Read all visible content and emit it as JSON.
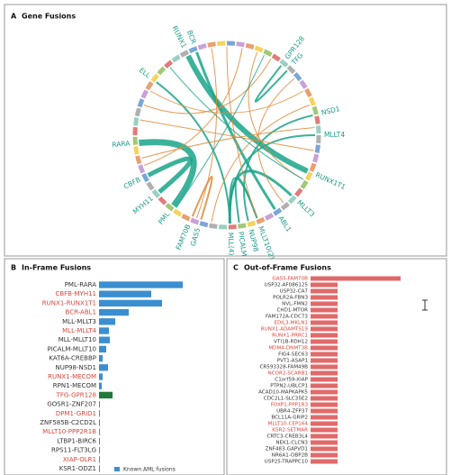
{
  "chart_data": [
    {
      "type": "chord",
      "panel": "A",
      "title": "Gene Fusions",
      "labels": [
        "RUNX1",
        "BCR",
        "GPR128",
        "TFG",
        "NSD1",
        "MLLT4",
        "RUNX1T1",
        "MLLT3",
        "ABL1",
        "MLLT10(2)",
        "NUP98",
        "PICALM",
        "MLL(4)",
        "GAS5",
        "FAM70B",
        "PML",
        "MYH11",
        "CBFB",
        "RARA",
        "ELL"
      ]
    },
    {
      "type": "hbar",
      "panel": "B",
      "title": "In-Frame Fusions",
      "categories": [
        "PML-RARA",
        "CBFB-MYH11",
        "RUNX1-RUNX1T1",
        "BCR-ABL1",
        "MLL-MLLT3",
        "MLL-MLLT4",
        "MLL-MLLT10",
        "PICALM-MLLT10",
        "KAT6A-CREBBP",
        "NUP98-NSD1",
        "RUNX1-MECOM",
        "RPN1-MECOM",
        "TFG-GPR128",
        "GOSR1-ZNF207",
        "DPM1-GRID1",
        "ZNF585B-C2CD2L",
        "MLLT10-PPP2R1B",
        "LTBP1-BIRC6",
        "RPS11-FLT3LG",
        "XIAP-OLR1",
        "KSR1-ODZ1"
      ],
      "values": [
        93,
        58,
        70,
        33,
        18,
        11,
        12,
        8,
        4,
        10,
        4,
        3,
        15,
        1,
        1,
        1,
        1,
        1,
        1,
        1,
        1
      ],
      "colors": [
        "#3b8fd0",
        "#3b8fd0",
        "#3b8fd0",
        "#3b8fd0",
        "#3b8fd0",
        "#3b8fd0",
        "#3b8fd0",
        "#3b8fd0",
        "#3b8fd0",
        "#3b8fd0",
        "#3b8fd0",
        "#3b8fd0",
        "#1f7a3a",
        "#3b8fd0",
        "#3b8fd0",
        "#3b8fd0",
        "#3b8fd0",
        "#3b8fd0",
        "#3b8fd0",
        "#3b8fd0",
        "#3b8fd0"
      ],
      "label_colors": [
        "#333333",
        "#d9453a",
        "#d9453a",
        "#d9453a",
        "#333333",
        "#d9453a",
        "#333333",
        "#333333",
        "#333333",
        "#333333",
        "#d9453a",
        "#333333",
        "#d9453a",
        "#333333",
        "#d9453a",
        "#333333",
        "#d9453a",
        "#333333",
        "#333333",
        "#d9453a",
        "#333333"
      ],
      "xlim": [
        0,
        100
      ],
      "legend": [
        {
          "name": "Known AML fusions",
          "color": "#3b8fd0"
        }
      ]
    },
    {
      "type": "hbar",
      "panel": "C",
      "title": "Out-of-Frame Fusions",
      "categories": [
        "GAS5-FAM70B",
        "USP32-AF086125",
        "USP32-CA7",
        "POLR2A-FBN3",
        "NVL-FMN2",
        "CHD1-MTOR",
        "FAM172A-CDC73",
        "EDIL3-MKLN1",
        "RUNX1-ADAMTS19",
        "RUNX1-PRRC1",
        "VTI1B-RDH12",
        "MDM4-DNMT3B",
        "FIG4-SEC63",
        "PVT1-ASAP1",
        "CR593328-FAM49B",
        "NCOR2-SCARB1",
        "C1orf59-XIAP",
        "PTPN2-UBLCP1",
        "ACAD10-MAPKAPK5",
        "CDC2L1-SLC35E2",
        "FOXP1-PPP1R3",
        "UBR4-ZFP37",
        "BCL11A-GRIP2",
        "MLLT10-CEP164",
        "KSR2-SETMAR",
        "CRTC3-CREB3L4",
        "NEK1-CLCN3",
        "ZNF483-GAPVD1",
        "NR6A1-OBP2B",
        "USP25-TRAPPC10"
      ],
      "values": [
        100,
        30,
        30,
        30,
        30,
        30,
        30,
        30,
        30,
        30,
        30,
        30,
        30,
        30,
        30,
        30,
        30,
        30,
        30,
        30,
        30,
        30,
        30,
        30,
        30,
        30,
        30,
        30,
        30,
        30
      ],
      "colors": [
        "#e06a6a",
        "#e06a6a",
        "#e06a6a",
        "#e06a6a",
        "#e06a6a",
        "#e06a6a",
        "#e06a6a",
        "#e06a6a",
        "#e06a6a",
        "#e06a6a",
        "#e06a6a",
        "#e06a6a",
        "#e06a6a",
        "#e06a6a",
        "#e06a6a",
        "#e06a6a",
        "#e06a6a",
        "#e06a6a",
        "#e06a6a",
        "#e06a6a",
        "#e06a6a",
        "#e06a6a",
        "#e06a6a",
        "#e06a6a",
        "#e06a6a",
        "#e06a6a",
        "#e06a6a",
        "#e06a6a",
        "#e06a6a",
        "#e06a6a"
      ],
      "label_colors": [
        "#d9453a",
        "#333333",
        "#333333",
        "#333333",
        "#333333",
        "#333333",
        "#333333",
        "#d9453a",
        "#d9453a",
        "#d9453a",
        "#333333",
        "#d9453a",
        "#333333",
        "#333333",
        "#333333",
        "#d9453a",
        "#333333",
        "#333333",
        "#333333",
        "#333333",
        "#d9453a",
        "#333333",
        "#333333",
        "#d9453a",
        "#d9453a",
        "#333333",
        "#333333",
        "#333333",
        "#333333",
        "#333333"
      ],
      "xlim": [
        0,
        100
      ]
    }
  ]
}
